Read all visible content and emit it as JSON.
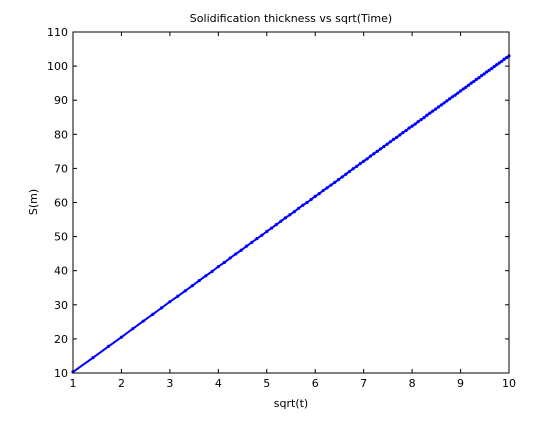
{
  "chart_data": {
    "type": "line",
    "title": "Solidification thickness vs sqrt(Time)",
    "xlabel": "sqrt(t)",
    "ylabel": "S(m)",
    "xlim": [
      1,
      10
    ],
    "ylim": [
      10,
      110
    ],
    "xticks": [
      "1",
      "2",
      "3",
      "4",
      "5",
      "6",
      "7",
      "8",
      "9",
      "10"
    ],
    "yticks": [
      "10",
      "20",
      "30",
      "40",
      "50",
      "60",
      "70",
      "80",
      "90",
      "100",
      "110"
    ],
    "grid": false,
    "legend": "none",
    "series": [
      {
        "color": "#0000ff",
        "marker": "dot",
        "x": [
          1.0,
          1.4142,
          1.7321,
          2.0,
          2.2361,
          2.4495,
          2.6458,
          2.8284,
          3.0,
          3.1623,
          3.3166,
          3.4641,
          3.6056,
          3.7417,
          3.873,
          4.0,
          4.1231,
          4.2426,
          4.3589,
          4.4721,
          4.5826,
          4.6904,
          4.7958,
          4.899,
          5.0,
          5.099,
          5.1962,
          5.2915,
          5.3852,
          5.4772,
          5.5678,
          5.6569,
          5.7446,
          5.831,
          5.9161,
          6.0,
          6.0828,
          6.1644,
          6.245,
          6.3246,
          6.4031,
          6.4807,
          6.5574,
          6.6332,
          6.7082,
          6.7823,
          6.8557,
          6.9282,
          7.0,
          7.0711,
          7.1414,
          7.2111,
          7.2801,
          7.3485,
          7.4162,
          7.4833,
          7.5498,
          7.6158,
          7.6811,
          7.746,
          7.8102,
          7.874,
          7.9373,
          8.0,
          8.0623,
          8.124,
          8.1854,
          8.2462,
          8.3066,
          8.3666,
          8.4261,
          8.4853,
          8.544,
          8.6023,
          8.6603,
          8.7178,
          8.775,
          8.8318,
          8.8882,
          8.9443,
          9.0,
          9.0554,
          9.1104,
          9.1652,
          9.2195,
          9.2736,
          9.3274,
          9.3808,
          9.434,
          9.4868,
          9.5394,
          9.5917,
          9.6437,
          9.6954,
          9.7468,
          9.798,
          9.8489,
          9.8995,
          9.9499,
          10.0
        ],
        "y": [
          10.3,
          14.5,
          17.8,
          20.5,
          23.0,
          25.2,
          27.2,
          29.1,
          30.9,
          32.5,
          34.1,
          35.6,
          37.1,
          38.5,
          39.8,
          41.2,
          42.4,
          43.7,
          44.9,
          46.0,
          47.2,
          48.3,
          49.4,
          50.4,
          51.5,
          52.5,
          53.5,
          54.5,
          55.5,
          56.4,
          57.3,
          58.3,
          59.2,
          60.0,
          60.9,
          61.8,
          62.6,
          63.5,
          64.3,
          65.1,
          65.9,
          66.7,
          67.5,
          68.3,
          69.1,
          69.9,
          70.6,
          71.4,
          72.1,
          72.8,
          73.6,
          74.3,
          75.0,
          75.7,
          76.4,
          77.1,
          77.8,
          78.5,
          79.1,
          79.8,
          80.5,
          81.1,
          81.8,
          82.4,
          83.0,
          83.7,
          84.3,
          84.9,
          85.6,
          86.2,
          86.8,
          87.4,
          88.0,
          88.6,
          89.2,
          89.8,
          90.4,
          91.0,
          91.5,
          92.1,
          92.7,
          93.3,
          93.8,
          94.4,
          95.0,
          95.5,
          96.1,
          96.6,
          97.2,
          97.7,
          98.3,
          98.8,
          99.3,
          99.9,
          100.4,
          100.9,
          101.4,
          102.0,
          102.5,
          103.0
        ]
      }
    ]
  }
}
